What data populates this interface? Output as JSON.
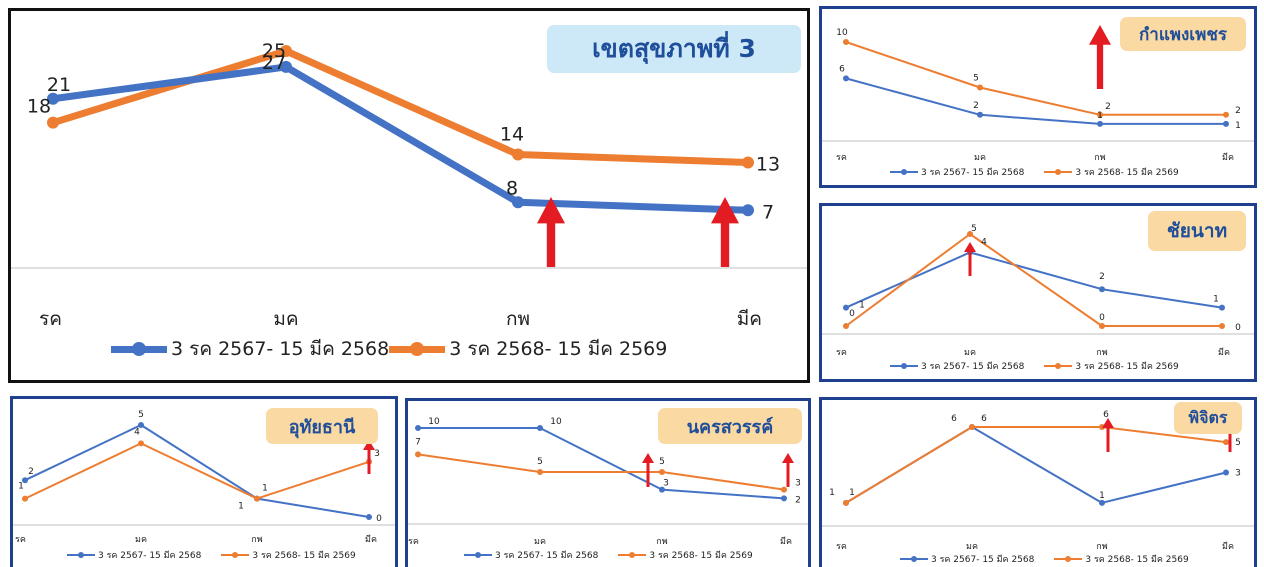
{
  "colors": {
    "blue": "#4472C4",
    "orange": "#ED7D31",
    "arrow": "#E31B23",
    "badge_main": "#CDE8F6",
    "badge_small": "#FBD9A3",
    "axis": "#BFBFBF"
  },
  "legend": [
    "3 รค 2567- 15 มีค 2568",
    "3 รค 2568- 15 มีค 2569"
  ],
  "chart_data": [
    {
      "id": "main",
      "type": "line",
      "title": "เขตสุขภาพที่ 3",
      "categories": [
        "รค",
        "มค",
        "กพ",
        "มีค"
      ],
      "series": [
        {
          "name": "3 รค 2567- 15 มีค 2568",
          "color": "#4472C4",
          "values": [
            21,
            25,
            8,
            7
          ],
          "labels": [
            "21",
            "25",
            "8",
            "7"
          ]
        },
        {
          "name": "3 รค 2568- 15 มีค 2569",
          "color": "#ED7D31",
          "values": [
            18,
            27,
            14,
            13
          ],
          "labels": [
            "18",
            "27",
            "14",
            "13"
          ]
        }
      ],
      "arrows": [
        2,
        3
      ],
      "legend_position": "bottom"
    },
    {
      "id": "kamphaengphet",
      "type": "line",
      "title": "กำแพงเพชร",
      "categories": [
        "รค",
        "มค",
        "กพ",
        "มีค"
      ],
      "series": [
        {
          "name": "3 รค 2567- 15 มีค 2568",
          "color": "#4472C4",
          "values": [
            6,
            2,
            1,
            1
          ],
          "labels": [
            "6",
            "2",
            "1",
            "1"
          ]
        },
        {
          "name": "3 รค 2568- 15 มีค 2569",
          "color": "#ED7D31",
          "values": [
            10,
            5,
            2,
            2
          ],
          "labels": [
            "10",
            "5",
            "2",
            "2"
          ]
        }
      ],
      "arrows": [],
      "big_arrow": true,
      "legend_position": "bottom"
    },
    {
      "id": "chainat",
      "type": "line",
      "title": "ชัยนาท",
      "categories": [
        "รค",
        "มค",
        "กพ",
        "มีค"
      ],
      "series": [
        {
          "name": "3 รค 2567- 15 มีค 2568",
          "color": "#4472C4",
          "values": [
            1,
            4,
            2,
            1
          ],
          "labels": [
            "1",
            "4",
            "2",
            "1"
          ]
        },
        {
          "name": "3 รค 2568- 15 มีค 2569",
          "color": "#ED7D31",
          "values": [
            0,
            5,
            0,
            0
          ],
          "labels": [
            "0",
            "5",
            "0",
            "0"
          ]
        }
      ],
      "arrows": [
        1
      ],
      "legend_position": "bottom"
    },
    {
      "id": "uthaithani",
      "type": "line",
      "title": "อุทัยธานี",
      "categories": [
        "รค",
        "มค",
        "กพ",
        "มีค"
      ],
      "series": [
        {
          "name": "3 รค 2567- 15 มีค 2568",
          "color": "#4472C4",
          "values": [
            2,
            5,
            1,
            0
          ],
          "labels": [
            "2",
            "5",
            "1",
            "0"
          ]
        },
        {
          "name": "3 รค 2568- 15 มีค 2569",
          "color": "#ED7D31",
          "values": [
            1,
            4,
            1,
            3
          ],
          "labels": [
            "1",
            "4",
            "1",
            "3"
          ]
        }
      ],
      "arrows": [
        3
      ],
      "legend_position": "bottom"
    },
    {
      "id": "nakhonsawan",
      "type": "line",
      "title": "นครสวรรค์",
      "categories": [
        "รค",
        "มค",
        "กพ",
        "มีค"
      ],
      "series": [
        {
          "name": "3 รค 2567- 15 มีค 2568",
          "color": "#4472C4",
          "values": [
            10,
            10,
            3,
            2
          ],
          "labels": [
            "10",
            "10",
            "3",
            "2"
          ]
        },
        {
          "name": "3 รค 2568- 15 มีค 2569",
          "color": "#ED7D31",
          "values": [
            7,
            5,
            5,
            3
          ],
          "labels": [
            "7",
            "5",
            "5",
            "3"
          ]
        }
      ],
      "arrows": [
        2,
        3
      ],
      "legend_position": "bottom"
    },
    {
      "id": "phichit",
      "type": "line",
      "title": "พิจิตร",
      "categories": [
        "รค",
        "มค",
        "กพ",
        "มีค"
      ],
      "series": [
        {
          "name": "3 รค 2567- 15 มีค 2568",
          "color": "#4472C4",
          "values": [
            1,
            6,
            1,
            3
          ],
          "labels": [
            "1",
            "6",
            "1",
            "3"
          ]
        },
        {
          "name": "3 รค 2568- 15 มีค 2569",
          "color": "#ED7D31",
          "values": [
            1,
            6,
            6,
            5
          ],
          "labels": [
            "1",
            "6",
            "6",
            "5"
          ]
        }
      ],
      "arrows": [
        2,
        3
      ],
      "legend_position": "bottom"
    }
  ]
}
